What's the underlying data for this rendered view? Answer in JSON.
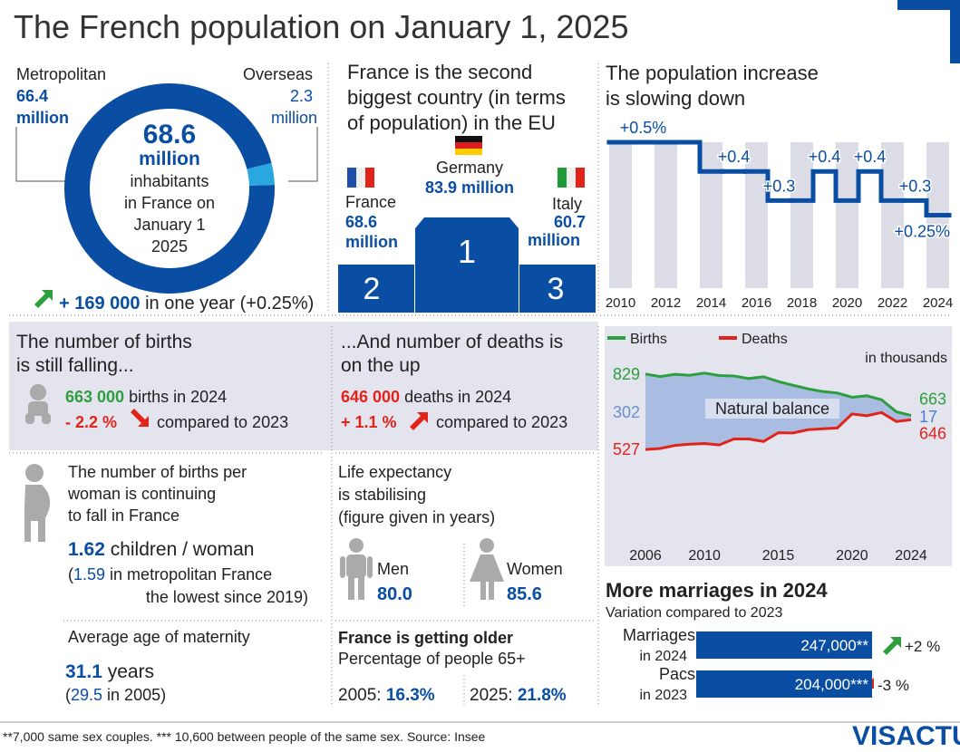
{
  "title": "The French population on January 1, 2025",
  "chart_data": [
    {
      "type": "donut",
      "categories": [
        "Metropolitan",
        "Overseas"
      ],
      "values": [
        66.4,
        2.3
      ],
      "unit": "million",
      "colors": [
        "#0a4ea3",
        "#2aa7df"
      ],
      "center": {
        "value": "68.6",
        "unit": "million",
        "lines": [
          "inhabitants",
          "in France on",
          "January 1",
          "2025"
        ]
      },
      "change": {
        "value": "+ 169 000",
        "text": " in one year (+0.25%)"
      }
    },
    {
      "type": "step",
      "title": [
        "The population increase",
        "is slowing down"
      ],
      "x": [
        2010,
        2011,
        2012,
        2013,
        2014,
        2015,
        2016,
        2017,
        2018,
        2019,
        2020,
        2021,
        2022,
        2023,
        2024
      ],
      "values": [
        0.5,
        0.5,
        0.5,
        0.5,
        0.4,
        0.4,
        0.4,
        0.3,
        0.3,
        0.4,
        0.3,
        0.4,
        0.3,
        0.3,
        0.25
      ],
      "value_labels": [
        null,
        "+0.5%",
        null,
        null,
        null,
        "+0.4",
        null,
        "+0.3",
        null,
        "+0.4",
        null,
        "+0.4",
        null,
        "+0.3",
        "+0.25%"
      ],
      "xlim": [
        2009.5,
        2024.5
      ],
      "xticks": [
        2010,
        2012,
        2014,
        2016,
        2018,
        2020,
        2022,
        2024
      ],
      "ylim": [
        0,
        0.5
      ],
      "color": "#0a4ea3"
    },
    {
      "type": "line",
      "subtitle": "in thousands",
      "x": [
        2006,
        2007,
        2008,
        2009,
        2010,
        2011,
        2012,
        2013,
        2014,
        2015,
        2016,
        2017,
        2018,
        2019,
        2020,
        2021,
        2022,
        2023,
        2024
      ],
      "series": [
        {
          "name": "Births",
          "color": "#2e9e3e",
          "values": [
            829,
            819,
            828,
            824,
            833,
            823,
            821,
            811,
            818,
            799,
            784,
            770,
            759,
            753,
            736,
            742,
            726,
            678,
            663
          ]
        },
        {
          "name": "Deaths",
          "color": "#e2231a",
          "values": [
            527,
            531,
            543,
            548,
            551,
            545,
            569,
            569,
            559,
            594,
            593,
            606,
            610,
            613,
            669,
            662,
            675,
            639,
            646
          ]
        }
      ],
      "balance": {
        "label": "Natural balance",
        "start": "302",
        "end": "17"
      },
      "xlim": [
        2006,
        2024
      ],
      "xticks": [
        2006,
        2010,
        2015,
        2020,
        2024
      ],
      "ylim": [
        150,
        930
      ]
    }
  ],
  "podium": {
    "title": [
      "France is the second",
      "biggest country (in terms",
      "of population) in the EU"
    ],
    "places": [
      {
        "country": "Germany",
        "value": "83.9 million",
        "rank": "1"
      },
      {
        "country": "France",
        "value": "68.6",
        "unit": "million",
        "rank": "2"
      },
      {
        "country": "Italy",
        "value": "60.7",
        "unit": "million",
        "rank": "3"
      }
    ]
  },
  "births": {
    "title": [
      "The number of births",
      "is still falling..."
    ],
    "value": "663 000",
    "text": " births in 2024",
    "change": "- 2.2 %",
    "compare": " compared to 2023"
  },
  "deaths": {
    "title": [
      "...And number of deaths is",
      "on the up"
    ],
    "value": "646 000",
    "text": " deaths in 2024",
    "change": "+ 1.1 %",
    "compare": " compared to 2023"
  },
  "fertility": {
    "title": [
      "The number of births per",
      "woman is continuing",
      "to fall in France"
    ],
    "value": "1.62",
    "unit": " children / woman",
    "note": [
      "(",
      "1.59",
      " in metropolitan France",
      "the lowest since 2019)"
    ]
  },
  "maternity": {
    "title": "Average age of maternity",
    "value": "31.1",
    "unit": " years",
    "note": [
      "(",
      "29.5",
      " in 2005)"
    ]
  },
  "life": {
    "title": [
      "Life expectancy",
      "is stabilising",
      "(figure given in years)"
    ],
    "men": {
      "label": "Men",
      "value": "80.0"
    },
    "women": {
      "label": "Women",
      "value": "85.6"
    }
  },
  "older": {
    "title": "France is getting older",
    "subtitle": "Percentage of people 65+",
    "items": [
      {
        "year": "2005: ",
        "value": "16.3%"
      },
      {
        "year": "2025: ",
        "value": "21.8%"
      }
    ]
  },
  "marriages": {
    "title": "More marriages in 2024",
    "subtitle": "Variation compared to 2023",
    "rows": [
      {
        "label": [
          "Marriages",
          "in 2024"
        ],
        "value": "247,000**",
        "change": "+2 %"
      },
      {
        "label": [
          "Pacs",
          "in 2023"
        ],
        "value": "204,000***",
        "change": "-3 %"
      }
    ]
  },
  "footer": {
    "note": "**7,000 same sex couples. *** 10,600 between people of the same sex. Source: Insee",
    "logo": "VISACTU"
  }
}
